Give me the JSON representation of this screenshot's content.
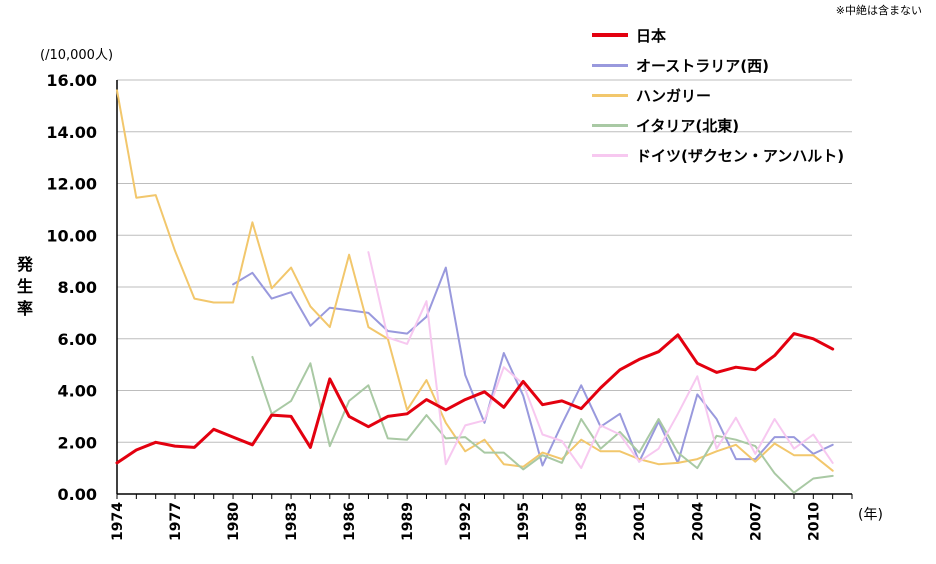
{
  "note": "※中絶は含まない",
  "chart_data": {
    "type": "line",
    "title": "",
    "ylabel": "発生率",
    "yunit": "(/10,000人)",
    "xunit": "(年)",
    "ylim": [
      0,
      16
    ],
    "yticks": [
      "0.00",
      "2.00",
      "4.00",
      "6.00",
      "8.00",
      "10.00",
      "12.00",
      "14.00",
      "16.00"
    ],
    "xlim": [
      1974,
      2012
    ],
    "xticks": [
      "1974",
      "1977",
      "1980",
      "1983",
      "1986",
      "1989",
      "1992",
      "1995",
      "1998",
      "2001",
      "2004",
      "2007",
      "2010"
    ],
    "legend_position": "top-right",
    "series": [
      {
        "name": "日本",
        "color": "#e3000f",
        "width": 3,
        "points": [
          [
            1974,
            1.2
          ],
          [
            1975,
            1.7
          ],
          [
            1976,
            2.0
          ],
          [
            1977,
            1.85
          ],
          [
            1978,
            1.8
          ],
          [
            1979,
            2.5
          ],
          [
            1980,
            2.2
          ],
          [
            1981,
            1.9
          ],
          [
            1982,
            3.05
          ],
          [
            1983,
            3.0
          ],
          [
            1984,
            1.8
          ],
          [
            1985,
            4.45
          ],
          [
            1986,
            3.0
          ],
          [
            1987,
            2.6
          ],
          [
            1988,
            3.0
          ],
          [
            1989,
            3.1
          ],
          [
            1990,
            3.65
          ],
          [
            1991,
            3.25
          ],
          [
            1992,
            3.65
          ],
          [
            1993,
            3.95
          ],
          [
            1994,
            3.35
          ],
          [
            1995,
            4.35
          ],
          [
            1996,
            3.45
          ],
          [
            1997,
            3.6
          ],
          [
            1998,
            3.3
          ],
          [
            1999,
            4.1
          ],
          [
            2000,
            4.8
          ],
          [
            2001,
            5.2
          ],
          [
            2002,
            5.5
          ],
          [
            2003,
            6.15
          ],
          [
            2004,
            5.05
          ],
          [
            2005,
            4.7
          ],
          [
            2006,
            4.9
          ],
          [
            2007,
            4.8
          ],
          [
            2008,
            5.35
          ],
          [
            2009,
            6.2
          ],
          [
            2010,
            6.0
          ],
          [
            2011,
            5.6
          ]
        ]
      },
      {
        "name": "オーストラリア(西)",
        "color": "#9999dd",
        "width": 2,
        "points": [
          [
            1980,
            8.1
          ],
          [
            1981,
            8.55
          ],
          [
            1982,
            7.55
          ],
          [
            1983,
            7.8
          ],
          [
            1984,
            6.5
          ],
          [
            1985,
            7.2
          ],
          [
            1986,
            7.1
          ],
          [
            1987,
            7.0
          ],
          [
            1988,
            6.3
          ],
          [
            1989,
            6.2
          ],
          [
            1990,
            6.85
          ],
          [
            1991,
            8.75
          ],
          [
            1992,
            4.6
          ],
          [
            1993,
            2.75
          ],
          [
            1994,
            5.45
          ],
          [
            1995,
            3.8
          ],
          [
            1996,
            1.1
          ],
          [
            1997,
            2.7
          ],
          [
            1998,
            4.2
          ],
          [
            1999,
            2.6
          ],
          [
            2000,
            3.1
          ],
          [
            2001,
            1.25
          ],
          [
            2002,
            2.8
          ],
          [
            2003,
            1.2
          ],
          [
            2004,
            3.85
          ],
          [
            2005,
            2.9
          ],
          [
            2006,
            1.35
          ],
          [
            2007,
            1.35
          ],
          [
            2008,
            2.2
          ],
          [
            2009,
            2.2
          ],
          [
            2010,
            1.55
          ],
          [
            2011,
            1.9
          ]
        ]
      },
      {
        "name": "ハンガリー",
        "color": "#f2c76c",
        "width": 2,
        "points": [
          [
            1974,
            15.6
          ],
          [
            1975,
            11.45
          ],
          [
            1976,
            11.55
          ],
          [
            1977,
            9.4
          ],
          [
            1978,
            7.55
          ],
          [
            1979,
            7.4
          ],
          [
            1980,
            7.4
          ],
          [
            1981,
            10.5
          ],
          [
            1982,
            7.95
          ],
          [
            1983,
            8.75
          ],
          [
            1984,
            7.25
          ],
          [
            1985,
            6.45
          ],
          [
            1986,
            9.25
          ],
          [
            1987,
            6.45
          ],
          [
            1988,
            6.0
          ],
          [
            1989,
            3.25
          ],
          [
            1990,
            4.4
          ],
          [
            1991,
            2.75
          ],
          [
            1992,
            1.65
          ],
          [
            1993,
            2.1
          ],
          [
            1994,
            1.15
          ],
          [
            1995,
            1.05
          ],
          [
            1996,
            1.6
          ],
          [
            1997,
            1.35
          ],
          [
            1998,
            2.1
          ],
          [
            1999,
            1.65
          ],
          [
            2000,
            1.65
          ],
          [
            2001,
            1.35
          ],
          [
            2002,
            1.15
          ],
          [
            2003,
            1.2
          ],
          [
            2004,
            1.35
          ],
          [
            2005,
            1.65
          ],
          [
            2006,
            1.9
          ],
          [
            2007,
            1.25
          ],
          [
            2008,
            1.95
          ],
          [
            2009,
            1.5
          ],
          [
            2010,
            1.5
          ],
          [
            2011,
            0.9
          ]
        ]
      },
      {
        "name": "イタリア(北東)",
        "color": "#a9c9a4",
        "width": 2,
        "points": [
          [
            1981,
            5.3
          ],
          [
            1982,
            3.1
          ],
          [
            1983,
            3.6
          ],
          [
            1984,
            5.05
          ],
          [
            1985,
            1.85
          ],
          [
            1986,
            3.6
          ],
          [
            1987,
            4.2
          ],
          [
            1988,
            2.15
          ],
          [
            1989,
            2.1
          ],
          [
            1990,
            3.05
          ],
          [
            1991,
            2.15
          ],
          [
            1992,
            2.2
          ],
          [
            1993,
            1.6
          ],
          [
            1994,
            1.6
          ],
          [
            1995,
            0.95
          ],
          [
            1996,
            1.5
          ],
          [
            1997,
            1.2
          ],
          [
            1998,
            2.9
          ],
          [
            1999,
            1.75
          ],
          [
            2000,
            2.4
          ],
          [
            2001,
            1.6
          ],
          [
            2002,
            2.9
          ],
          [
            2003,
            1.6
          ],
          [
            2004,
            1.0
          ],
          [
            2005,
            2.25
          ],
          [
            2006,
            2.1
          ],
          [
            2007,
            1.85
          ],
          [
            2008,
            0.8
          ],
          [
            2009,
            0.05
          ],
          [
            2010,
            0.6
          ],
          [
            2011,
            0.7
          ]
        ]
      },
      {
        "name": "ドイツ(ザクセン・アンハルト)",
        "color": "#f7c8f0",
        "width": 2,
        "points": [
          [
            1987,
            9.35
          ],
          [
            1988,
            6.05
          ],
          [
            1989,
            5.8
          ],
          [
            1990,
            7.45
          ],
          [
            1991,
            1.15
          ],
          [
            1992,
            2.65
          ],
          [
            1993,
            2.85
          ],
          [
            1994,
            4.9
          ],
          [
            1995,
            4.25
          ],
          [
            1996,
            2.3
          ],
          [
            1997,
            2.05
          ],
          [
            1998,
            1.0
          ],
          [
            1999,
            2.65
          ],
          [
            2000,
            2.3
          ],
          [
            2001,
            1.25
          ],
          [
            2002,
            1.75
          ],
          [
            2003,
            3.1
          ],
          [
            2004,
            4.55
          ],
          [
            2005,
            1.75
          ],
          [
            2006,
            2.95
          ],
          [
            2007,
            1.55
          ],
          [
            2008,
            2.9
          ],
          [
            2009,
            1.75
          ],
          [
            2010,
            2.3
          ],
          [
            2011,
            1.2
          ]
        ]
      }
    ]
  }
}
